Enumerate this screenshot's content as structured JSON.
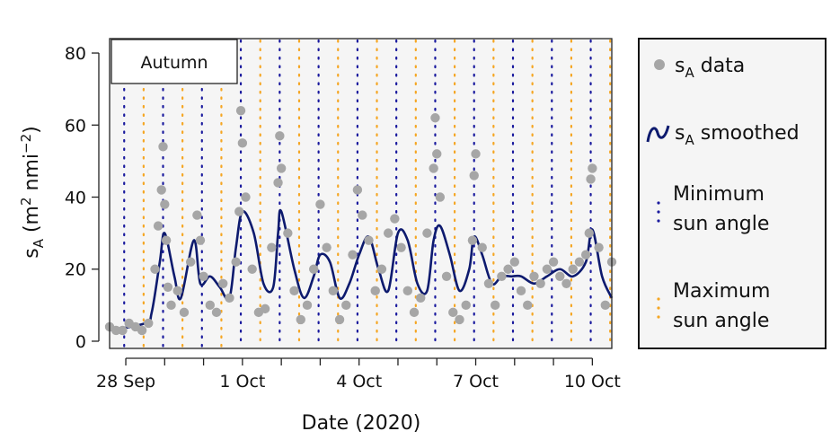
{
  "chart_data": {
    "type": "scatter",
    "panel_label": "Autumn",
    "xlabel": "Date (2020)",
    "ylabel": {
      "main": "s",
      "sub": "A",
      "unit_open": " (m",
      "sup1": "2",
      "unit_mid": " nmi",
      "sup2": "−2",
      "unit_close": ")"
    },
    "xlim": [
      "2020-09-27T14:00",
      "2020-10-10T12:00"
    ],
    "ylim": [
      -2,
      84
    ],
    "yticks": [
      0,
      20,
      40,
      60,
      80
    ],
    "xticks_minor": [
      "2020-09-28",
      "2020-09-29",
      "2020-09-30",
      "2020-10-01",
      "2020-10-02",
      "2020-10-03",
      "2020-10-04",
      "2020-10-05",
      "2020-10-06",
      "2020-10-07",
      "2020-10-08",
      "2020-10-09",
      "2020-10-10"
    ],
    "xtick_labels": [
      {
        "date": "2020-09-28",
        "label": "28 Sep"
      },
      {
        "date": "2020-10-01",
        "label": "1 Oct"
      },
      {
        "date": "2020-10-04",
        "label": "4 Oct"
      },
      {
        "date": "2020-10-07",
        "label": "7 Oct"
      },
      {
        "date": "2020-10-10",
        "label": "10 Oct"
      }
    ],
    "grid": false,
    "legend_position": "right",
    "colors": {
      "data": "#a6a6a6",
      "smoothed": "#0d1a6e",
      "min_sun": "#1a1a9e",
      "max_sun": "#f5a623",
      "panel_bg": "#f5f5f5"
    },
    "min_sun_times": [
      "2020-09-27T23:00",
      "2020-09-28T23:00",
      "2020-09-29T23:00",
      "2020-09-30T23:00",
      "2020-10-01T23:00",
      "2020-10-02T23:00",
      "2020-10-03T23:00",
      "2020-10-04T23:00",
      "2020-10-05T23:00",
      "2020-10-06T23:00",
      "2020-10-07T23:00",
      "2020-10-08T23:00",
      "2020-10-09T23:00"
    ],
    "max_sun_times": [
      "2020-09-28T11:00",
      "2020-09-29T11:00",
      "2020-09-30T11:00",
      "2020-10-01T11:00",
      "2020-10-02T11:00",
      "2020-10-03T11:00",
      "2020-10-04T11:00",
      "2020-10-05T11:00",
      "2020-10-06T11:00",
      "2020-10-07T11:00",
      "2020-10-08T11:00",
      "2020-10-09T11:00",
      "2020-10-10T11:00"
    ],
    "series": [
      {
        "name": "s_A smoothed",
        "kind": "line",
        "x": [
          "2020-09-27T14:00",
          "2020-09-28T12:00",
          "2020-09-28T16:00",
          "2020-09-28T21:00",
          "2020-09-29T00:00",
          "2020-09-29T06:00",
          "2020-09-29T10:00",
          "2020-09-29T18:00",
          "2020-09-29T22:00",
          "2020-09-30T04:00",
          "2020-09-30T10:00",
          "2020-09-30T16:00",
          "2020-09-30T20:00",
          "2020-10-01T00:00",
          "2020-10-01T07:00",
          "2020-10-01T13:00",
          "2020-10-01T19:00",
          "2020-10-01T22:00",
          "2020-10-02T00:00",
          "2020-10-02T08:00",
          "2020-10-02T14:00",
          "2020-10-02T20:00",
          "2020-10-03T00:00",
          "2020-10-03T06:00",
          "2020-10-03T12:00",
          "2020-10-03T18:00",
          "2020-10-04T00:00",
          "2020-10-04T06:00",
          "2020-10-04T12:00",
          "2020-10-04T18:00",
          "2020-10-05T00:00",
          "2020-10-05T06:00",
          "2020-10-05T12:00",
          "2020-10-05T18:00",
          "2020-10-05T22:00",
          "2020-10-06T02:00",
          "2020-10-06T08:00",
          "2020-10-06T14:00",
          "2020-10-06T20:00",
          "2020-10-06T23:00",
          "2020-10-07T04:00",
          "2020-10-07T10:00",
          "2020-10-07T16:00",
          "2020-10-07T22:00",
          "2020-10-08T04:00",
          "2020-10-08T12:00",
          "2020-10-08T20:00",
          "2020-10-09T04:00",
          "2020-10-09T12:00",
          "2020-10-09T20:00",
          "2020-10-10T00:00",
          "2020-10-10T06:00",
          "2020-10-10T12:00"
        ],
        "y": [
          3,
          5,
          8,
          22,
          30,
          18,
          12,
          28,
          16,
          18,
          15,
          12,
          26,
          36,
          30,
          16,
          15,
          30,
          36,
          20,
          12,
          18,
          24,
          22,
          12,
          16,
          24,
          29,
          20,
          14,
          30,
          28,
          16,
          14,
          28,
          32,
          24,
          14,
          20,
          29,
          24,
          16,
          18,
          18,
          18,
          16,
          18,
          20,
          18,
          22,
          31,
          18,
          12
        ]
      },
      {
        "name": "s_A data",
        "kind": "points",
        "x": [
          "2020-09-27T14:00",
          "2020-09-27T18:00",
          "2020-09-27T22:00",
          "2020-09-28T02:00",
          "2020-09-28T06:00",
          "2020-09-28T10:00",
          "2020-09-28T14:00",
          "2020-09-28T18:00",
          "2020-09-28T20:00",
          "2020-09-28T22:00",
          "2020-09-28T23:00",
          "2020-09-29T00:00",
          "2020-09-29T01:00",
          "2020-09-29T02:00",
          "2020-09-29T04:00",
          "2020-09-29T08:00",
          "2020-09-29T12:00",
          "2020-09-29T16:00",
          "2020-09-29T20:00",
          "2020-09-29T22:00",
          "2020-09-30T00:00",
          "2020-09-30T04:00",
          "2020-09-30T08:00",
          "2020-09-30T12:00",
          "2020-09-30T16:00",
          "2020-09-30T20:00",
          "2020-09-30T22:00",
          "2020-09-30T23:00",
          "2020-10-01T00:00",
          "2020-10-01T02:00",
          "2020-10-01T06:00",
          "2020-10-01T10:00",
          "2020-10-01T14:00",
          "2020-10-01T18:00",
          "2020-10-01T22:00",
          "2020-10-01T23:00",
          "2020-10-02T00:00",
          "2020-10-02T04:00",
          "2020-10-02T08:00",
          "2020-10-02T12:00",
          "2020-10-02T16:00",
          "2020-10-02T20:00",
          "2020-10-03T00:00",
          "2020-10-03T04:00",
          "2020-10-03T08:00",
          "2020-10-03T12:00",
          "2020-10-03T16:00",
          "2020-10-03T20:00",
          "2020-10-03T23:00",
          "2020-10-04T02:00",
          "2020-10-04T06:00",
          "2020-10-04T10:00",
          "2020-10-04T14:00",
          "2020-10-04T18:00",
          "2020-10-04T22:00",
          "2020-10-05T02:00",
          "2020-10-05T06:00",
          "2020-10-05T10:00",
          "2020-10-05T14:00",
          "2020-10-05T18:00",
          "2020-10-05T22:00",
          "2020-10-05T23:00",
          "2020-10-06T00:00",
          "2020-10-06T02:00",
          "2020-10-06T06:00",
          "2020-10-06T10:00",
          "2020-10-06T14:00",
          "2020-10-06T18:00",
          "2020-10-06T22:00",
          "2020-10-06T23:00",
          "2020-10-07T00:00",
          "2020-10-07T04:00",
          "2020-10-07T08:00",
          "2020-10-07T12:00",
          "2020-10-07T16:00",
          "2020-10-07T20:00",
          "2020-10-08T00:00",
          "2020-10-08T04:00",
          "2020-10-08T08:00",
          "2020-10-08T12:00",
          "2020-10-08T16:00",
          "2020-10-08T20:00",
          "2020-10-09T00:00",
          "2020-10-09T04:00",
          "2020-10-09T08:00",
          "2020-10-09T12:00",
          "2020-10-09T16:00",
          "2020-10-09T20:00",
          "2020-10-09T22:00",
          "2020-10-09T23:00",
          "2020-10-10T00:00",
          "2020-10-10T04:00",
          "2020-10-10T08:00",
          "2020-10-10T12:00"
        ],
        "y": [
          4,
          3,
          3,
          5,
          4,
          3,
          5,
          20,
          32,
          42,
          54,
          38,
          28,
          15,
          10,
          14,
          8,
          22,
          35,
          28,
          18,
          10,
          8,
          16,
          12,
          22,
          36,
          64,
          55,
          40,
          20,
          8,
          9,
          26,
          44,
          57,
          48,
          30,
          14,
          6,
          10,
          20,
          38,
          26,
          14,
          6,
          10,
          24,
          42,
          35,
          28,
          14,
          20,
          30,
          34,
          26,
          14,
          8,
          12,
          30,
          48,
          62,
          52,
          40,
          18,
          8,
          6,
          10,
          28,
          46,
          52,
          26,
          16,
          10,
          18,
          20,
          22,
          14,
          10,
          18,
          16,
          20,
          22,
          18,
          16,
          20,
          22,
          24,
          30,
          45,
          48,
          26,
          10,
          22
        ]
      }
    ],
    "legend": [
      {
        "kind": "points",
        "label_main": "s",
        "label_sub": "A",
        "label_rest": " data"
      },
      {
        "kind": "line",
        "label_main": "s",
        "label_sub": "A",
        "label_rest": " smoothed"
      },
      {
        "kind": "min",
        "line1": "Minimum",
        "line2": "sun angle"
      },
      {
        "kind": "max",
        "line1": "Maximum",
        "line2": "sun angle"
      }
    ]
  }
}
